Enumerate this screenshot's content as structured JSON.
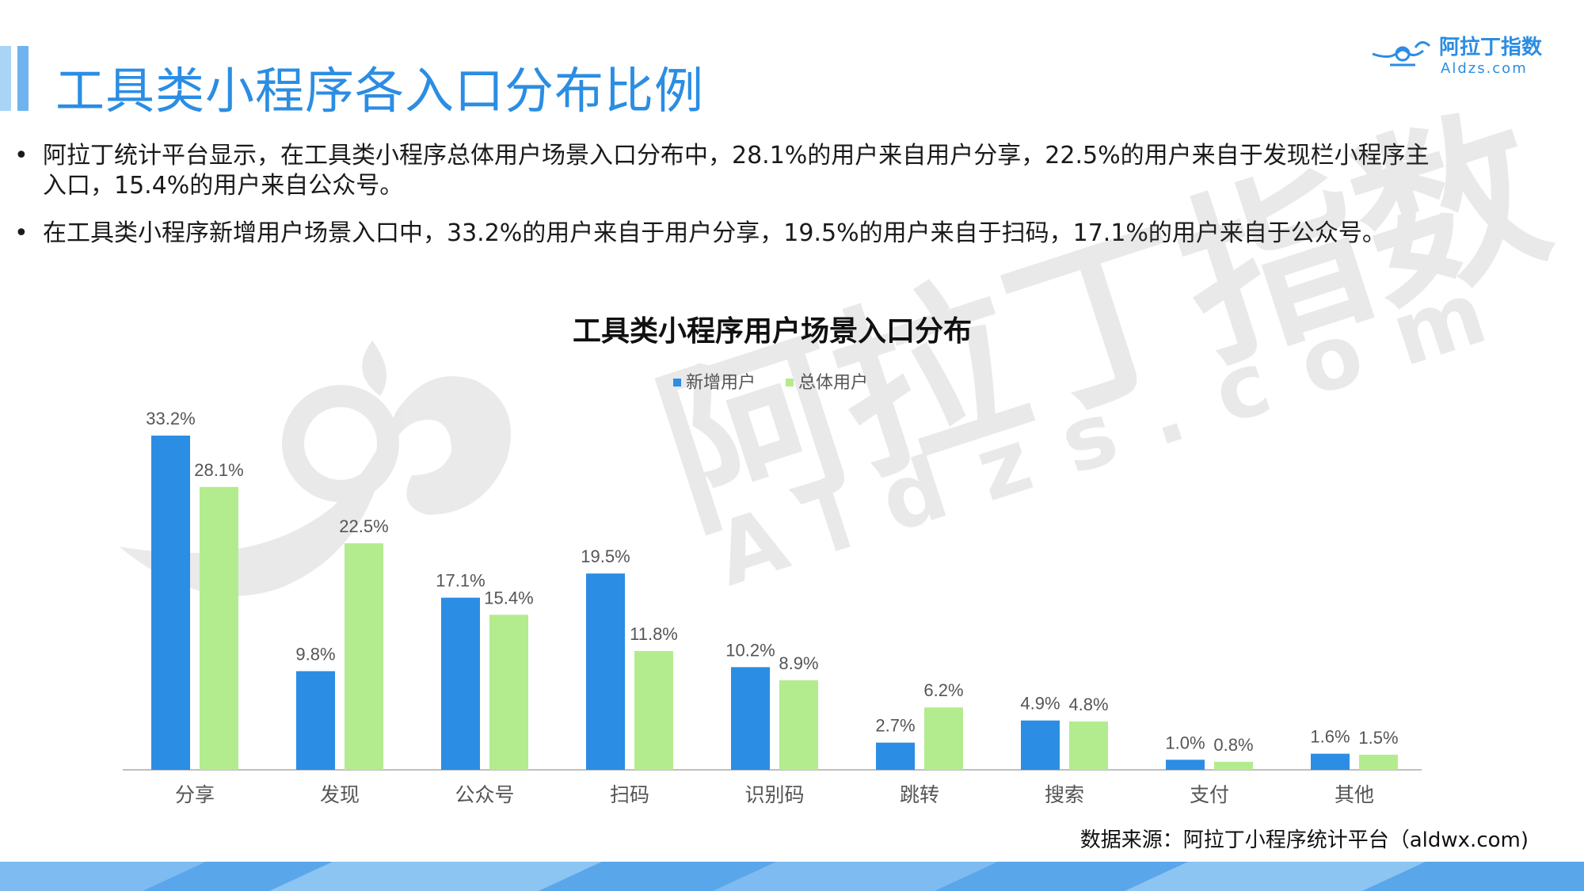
{
  "header": {
    "title": "工具类小程序各入口分布比例",
    "brand_name": "阿拉丁指数",
    "brand_url": "Aldzs.com"
  },
  "bullets": [
    "阿拉丁统计平台显示，在工具类小程序总体用户场景入口分布中，28.1%的用户来自用户分享，22.5%的用户来自于发现栏小程序主入口，15.4%的用户来自公众号。",
    "在工具类小程序新增用户场景入口中，33.2%的用户来自于用户分享，19.5%的用户来自于扫码，17.1%的用户来自于公众号。"
  ],
  "watermark": {
    "main": "阿拉丁指数",
    "sub": "Aldzs.com"
  },
  "colors": {
    "accent": "#2b8de3",
    "new_users": "#2b8de3",
    "total_users": "#b3ec8e"
  },
  "chart_data": {
    "type": "bar",
    "title": "工具类小程序用户场景入口分布",
    "categories": [
      "分享",
      "发现",
      "公众号",
      "扫码",
      "识别码",
      "跳转",
      "搜索",
      "支付",
      "其他"
    ],
    "series": [
      {
        "name": "新增用户",
        "values": [
          33.2,
          9.8,
          17.1,
          19.5,
          10.2,
          2.7,
          4.9,
          1.0,
          1.6
        ],
        "labels": [
          "33.2%",
          "9.8%",
          "17.1%",
          "19.5%",
          "10.2%",
          "2.7%",
          "4.9%",
          "1.0%",
          "1.6%"
        ]
      },
      {
        "name": "总体用户",
        "values": [
          28.1,
          22.5,
          15.4,
          11.8,
          8.9,
          6.2,
          4.8,
          0.8,
          1.5
        ],
        "labels": [
          "28.1%",
          "22.5%",
          "15.4%",
          "11.8%",
          "8.9%",
          "6.2%",
          "4.8%",
          "0.8%",
          "1.5%"
        ]
      }
    ],
    "ylim": [
      0,
      35
    ],
    "grid": false,
    "legend_position": "top-center"
  },
  "source": "数据来源：阿拉丁小程序统计平台（aldwx.com)"
}
